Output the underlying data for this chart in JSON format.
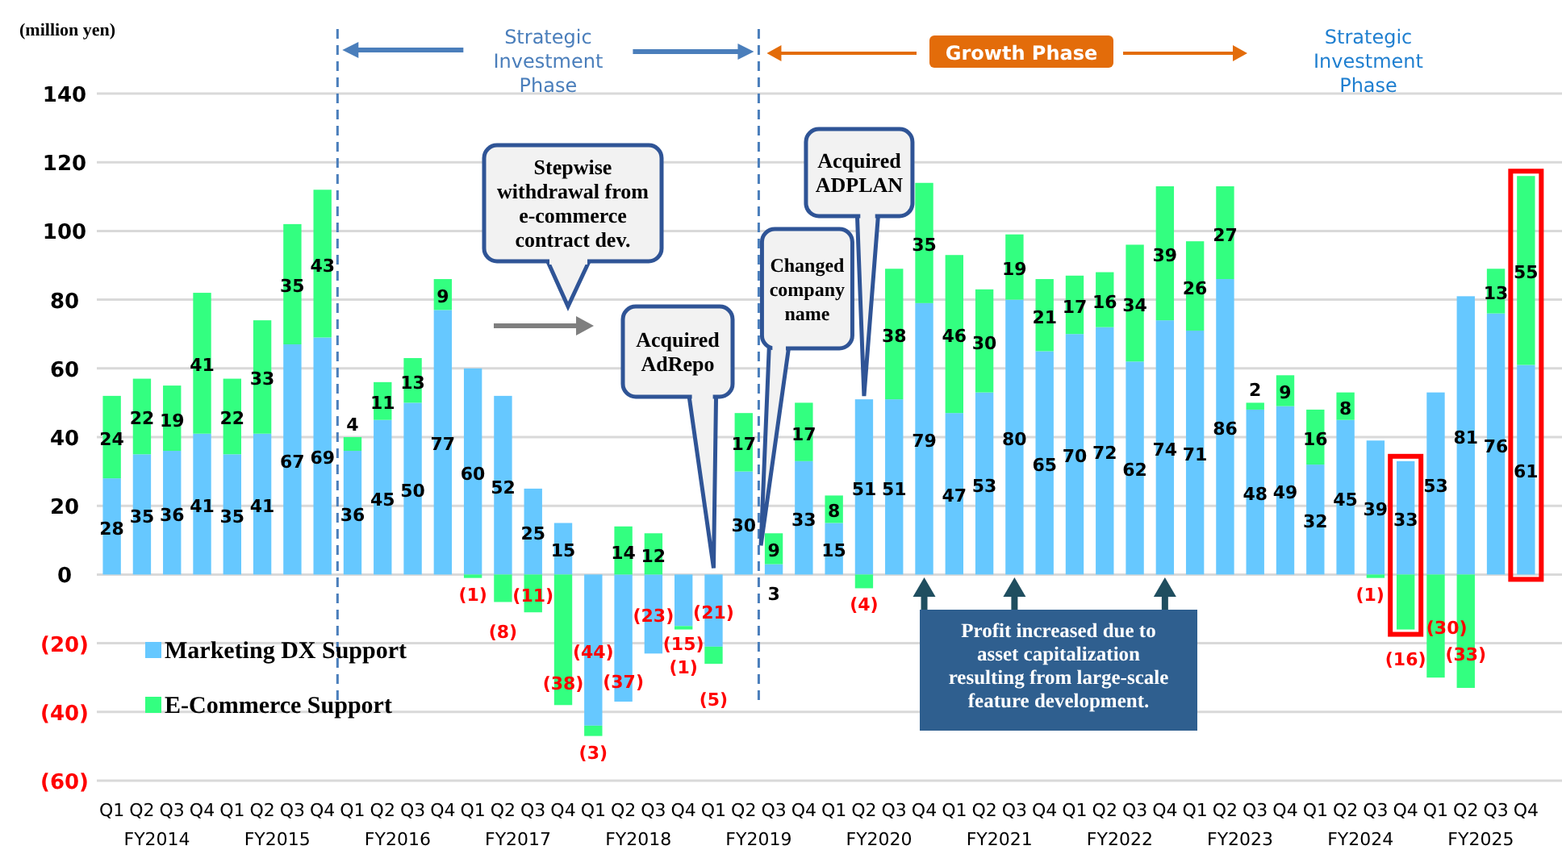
{
  "chart_data": {
    "type": "bar",
    "stacked": true,
    "ylabel": "(million yen)",
    "categories": [
      "Q1",
      "Q2",
      "Q3",
      "Q4",
      "Q1",
      "Q2",
      "Q3",
      "Q4",
      "Q1",
      "Q2",
      "Q3",
      "Q4",
      "Q1",
      "Q2",
      "Q3",
      "Q4",
      "Q1",
      "Q2",
      "Q3",
      "Q4",
      "Q1",
      "Q2",
      "Q3",
      "Q4",
      "Q1",
      "Q2",
      "Q3",
      "Q4",
      "Q1",
      "Q2",
      "Q3",
      "Q4",
      "Q1",
      "Q2",
      "Q3",
      "Q4",
      "Q1",
      "Q2",
      "Q3",
      "Q4",
      "Q1",
      "Q2",
      "Q3",
      "Q4",
      "Q1",
      "Q2",
      "Q3",
      "Q4"
    ],
    "series": [
      {
        "name": "Marketing DX Support",
        "color": "#66c8ff",
        "values": [
          28,
          35,
          36,
          41,
          35,
          41,
          67,
          69,
          36,
          45,
          50,
          77,
          60,
          52,
          25,
          15,
          -44,
          -37,
          -23,
          -15,
          -21,
          30,
          3,
          33,
          15,
          51,
          51,
          79,
          47,
          53,
          80,
          65,
          70,
          72,
          62,
          74,
          71,
          86,
          48,
          49,
          32,
          45,
          39,
          33,
          53,
          81,
          76,
          61
        ],
        "value_labels": [
          "28",
          "35",
          "36",
          "41",
          "35",
          "41",
          "67",
          "69",
          "36",
          "45",
          "50",
          "77",
          "60",
          "52",
          "25",
          "15",
          "(44)",
          "(37)",
          "(23)",
          "(15)",
          "(21)",
          "30",
          "3",
          "33",
          "15",
          "51",
          "51",
          "79",
          "47",
          "53",
          "80",
          "65",
          "70",
          "72",
          "62",
          "74",
          "71",
          "86",
          "48",
          "49",
          "32",
          "45",
          "39",
          "33",
          "53",
          "81",
          "76",
          "61"
        ]
      },
      {
        "name": "E-Commerce Support",
        "color": "#33ff80",
        "values": [
          24,
          22,
          19,
          41,
          22,
          33,
          35,
          43,
          4,
          11,
          13,
          9,
          -1,
          -8,
          -11,
          -38,
          -3,
          14,
          12,
          -1,
          -5,
          17,
          9,
          17,
          8,
          -4,
          38,
          35,
          46,
          30,
          19,
          21,
          17,
          16,
          34,
          39,
          26,
          27,
          2,
          9,
          16,
          8,
          -1,
          -16,
          -30,
          -33,
          13,
          55
        ],
        "value_labels": [
          "24",
          "22",
          "19",
          "41",
          "22",
          "33",
          "35",
          "43",
          "4",
          "11",
          "13",
          "9",
          "(1)",
          "(8)",
          "(11)",
          "(38)",
          "(3)",
          "14",
          "12",
          "(1)",
          "(5)",
          "17",
          "9",
          "17",
          "8",
          "(4)",
          "38",
          "35",
          "46",
          "30",
          "19",
          "21",
          "17",
          "16",
          "34",
          "39",
          "26",
          "27",
          "2",
          "9",
          "16",
          "8",
          "(1)",
          "(16)",
          "(30)",
          "(33)",
          "13",
          "55"
        ]
      }
    ],
    "ylim": [
      -60,
      140
    ],
    "yticks": [
      {
        "value": -60,
        "label": "(60)"
      },
      {
        "value": -40,
        "label": "(40)"
      },
      {
        "value": -20,
        "label": "(20)"
      },
      0,
      20,
      40,
      60,
      80,
      100,
      120,
      140
    ],
    "grid": "y",
    "legend": "bottom left",
    "annotations": [
      "FY2014",
      "FY2015",
      "FY2016",
      "FY2017",
      "FY2018",
      "FY2019",
      "FY2020",
      "FY2021",
      "FY2022",
      "FY2023",
      "FY2024",
      "FY2025",
      "Strategic Investment Phase",
      "Growth Phase",
      "Strategic Investment Phase",
      "Stepwise withdrawal from e-commerce contract dev.",
      "Acquired AdRepo",
      "Changed company name",
      "Acquired ADPLAN",
      "Profit increased due to asset capitalization resulting from large-scale feature development."
    ]
  }
}
